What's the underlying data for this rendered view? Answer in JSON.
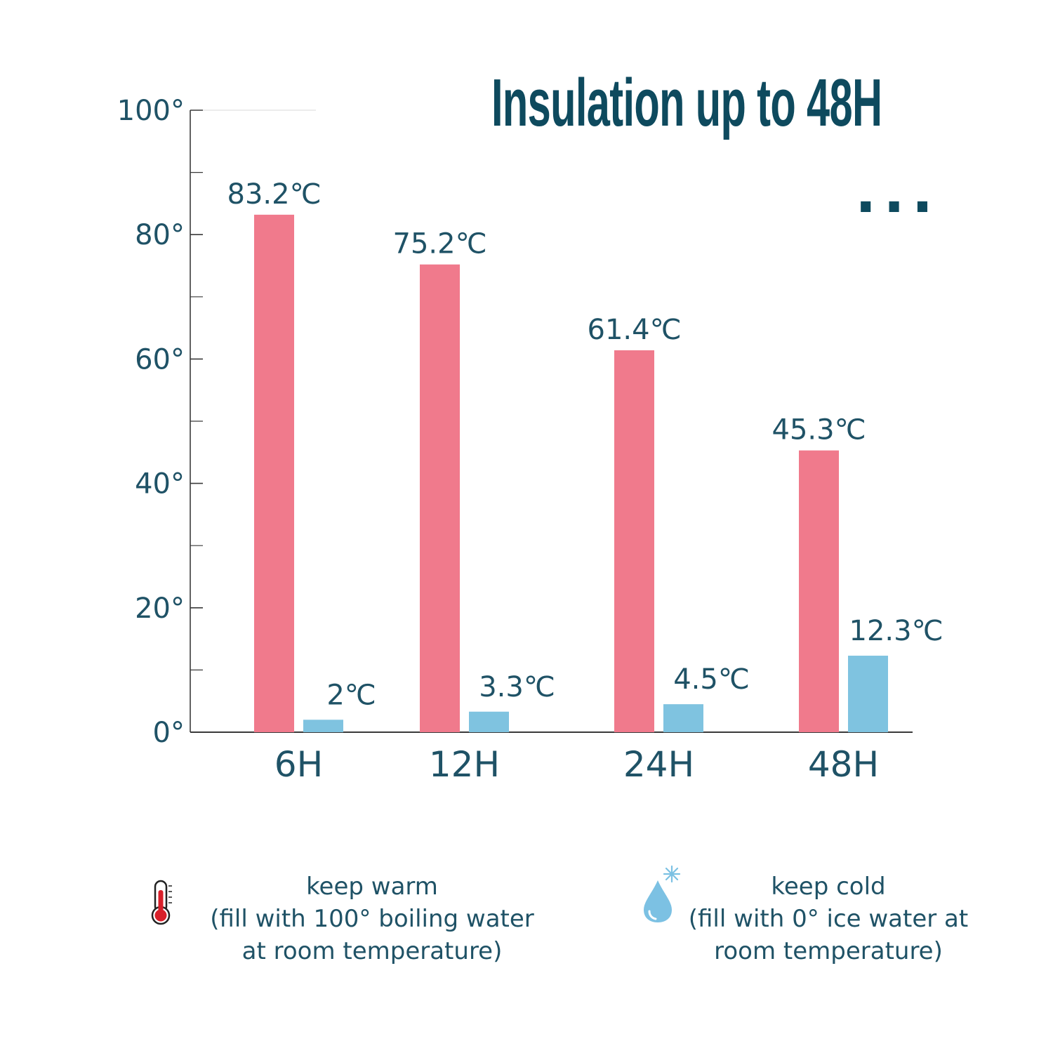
{
  "colors": {
    "text": "#1f5266",
    "title": "#0e4a5e",
    "axis": "#3a3a3a",
    "warm": "#f07a8c",
    "cold": "#7fc3e0",
    "thermometer_red": "#d8202a",
    "drop_blue": "#7cc1e3"
  },
  "icons": {
    "warm": "thermometer-icon",
    "cold": "water-drop-snowflake-icon",
    "more": "ellipsis-icon"
  },
  "chart_data": {
    "type": "bar",
    "title": "Insulation up to 48H",
    "more_indicator": "...",
    "categories": [
      "6H",
      "12H",
      "24H",
      "48H"
    ],
    "ylim": [
      0,
      100
    ],
    "y_ticks": [
      0,
      20,
      40,
      60,
      80,
      100
    ],
    "y_tick_labels": [
      "0°",
      "20°",
      "40°",
      "60°",
      "80°",
      "100°"
    ],
    "y_minor_ticks": [
      10,
      30,
      50,
      70,
      90
    ],
    "grid": false,
    "series": [
      {
        "name": "keep warm",
        "values": [
          83.2,
          75.2,
          61.4,
          45.3
        ],
        "labels": [
          "83.2℃",
          "75.2℃",
          "61.4℃",
          "45.3℃"
        ]
      },
      {
        "name": "keep cold",
        "values": [
          2,
          3.3,
          4.5,
          12.3
        ],
        "labels": [
          "2℃",
          "3.3℃",
          "4.5℃",
          "12.3℃"
        ]
      }
    ],
    "legend": [
      {
        "title": "keep warm",
        "lines": [
          "(fill with 100° boiling water",
          "at room temperature)"
        ]
      },
      {
        "title": "keep cold",
        "lines": [
          "(fill with 0° ice water at",
          "room temperature)"
        ]
      }
    ],
    "legend_position": "bottom"
  }
}
